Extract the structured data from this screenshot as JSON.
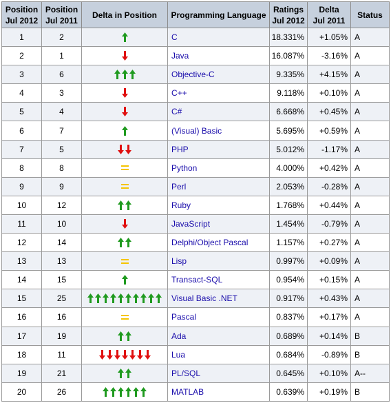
{
  "chart_data": {
    "type": "table",
    "columns": [
      {
        "line1": "Position",
        "line2": "Jul 2012"
      },
      {
        "line1": "Position",
        "line2": "Jul 2011"
      },
      {
        "line1": "Delta in Position",
        "line2": ""
      },
      {
        "line1": "Programming Language",
        "line2": ""
      },
      {
        "line1": "Ratings",
        "line2": "Jul 2012"
      },
      {
        "line1": "Delta",
        "line2": "Jul 2011"
      },
      {
        "line1": "Status",
        "line2": ""
      }
    ],
    "rows": [
      {
        "pos2012": "1",
        "pos2011": "2",
        "delta_dir": "up",
        "delta_count": 1,
        "language": "C",
        "rating": "18.331%",
        "delta": "+1.05%",
        "status": "A"
      },
      {
        "pos2012": "2",
        "pos2011": "1",
        "delta_dir": "down",
        "delta_count": 1,
        "language": "Java",
        "rating": "16.087%",
        "delta": "-3.16%",
        "status": "A"
      },
      {
        "pos2012": "3",
        "pos2011": "6",
        "delta_dir": "up",
        "delta_count": 3,
        "language": "Objective-C",
        "rating": "9.335%",
        "delta": "+4.15%",
        "status": "A"
      },
      {
        "pos2012": "4",
        "pos2011": "3",
        "delta_dir": "down",
        "delta_count": 1,
        "language": "C++",
        "rating": "9.118%",
        "delta": "+0.10%",
        "status": "A"
      },
      {
        "pos2012": "5",
        "pos2011": "4",
        "delta_dir": "down",
        "delta_count": 1,
        "language": "C#",
        "rating": "6.668%",
        "delta": "+0.45%",
        "status": "A"
      },
      {
        "pos2012": "6",
        "pos2011": "7",
        "delta_dir": "up",
        "delta_count": 1,
        "language": "(Visual) Basic",
        "rating": "5.695%",
        "delta": "+0.59%",
        "status": "A"
      },
      {
        "pos2012": "7",
        "pos2011": "5",
        "delta_dir": "down",
        "delta_count": 2,
        "language": "PHP",
        "rating": "5.012%",
        "delta": "-1.17%",
        "status": "A"
      },
      {
        "pos2012": "8",
        "pos2011": "8",
        "delta_dir": "same",
        "delta_count": 0,
        "language": "Python",
        "rating": "4.000%",
        "delta": "+0.42%",
        "status": "A"
      },
      {
        "pos2012": "9",
        "pos2011": "9",
        "delta_dir": "same",
        "delta_count": 0,
        "language": "Perl",
        "rating": "2.053%",
        "delta": "-0.28%",
        "status": "A"
      },
      {
        "pos2012": "10",
        "pos2011": "12",
        "delta_dir": "up",
        "delta_count": 2,
        "language": "Ruby",
        "rating": "1.768%",
        "delta": "+0.44%",
        "status": "A"
      },
      {
        "pos2012": "11",
        "pos2011": "10",
        "delta_dir": "down",
        "delta_count": 1,
        "language": "JavaScript",
        "rating": "1.454%",
        "delta": "-0.79%",
        "status": "A"
      },
      {
        "pos2012": "12",
        "pos2011": "14",
        "delta_dir": "up",
        "delta_count": 2,
        "language": "Delphi/Object Pascal",
        "rating": "1.157%",
        "delta": "+0.27%",
        "status": "A"
      },
      {
        "pos2012": "13",
        "pos2011": "13",
        "delta_dir": "same",
        "delta_count": 0,
        "language": "Lisp",
        "rating": "0.997%",
        "delta": "+0.09%",
        "status": "A"
      },
      {
        "pos2012": "14",
        "pos2011": "15",
        "delta_dir": "up",
        "delta_count": 1,
        "language": "Transact-SQL",
        "rating": "0.954%",
        "delta": "+0.15%",
        "status": "A"
      },
      {
        "pos2012": "15",
        "pos2011": "25",
        "delta_dir": "up",
        "delta_count": 10,
        "language": "Visual Basic .NET",
        "rating": "0.917%",
        "delta": "+0.43%",
        "status": "A"
      },
      {
        "pos2012": "16",
        "pos2011": "16",
        "delta_dir": "same",
        "delta_count": 0,
        "language": "Pascal",
        "rating": "0.837%",
        "delta": "+0.17%",
        "status": "A"
      },
      {
        "pos2012": "17",
        "pos2011": "19",
        "delta_dir": "up",
        "delta_count": 2,
        "language": "Ada",
        "rating": "0.689%",
        "delta": "+0.14%",
        "status": "B"
      },
      {
        "pos2012": "18",
        "pos2011": "11",
        "delta_dir": "down",
        "delta_count": 7,
        "language": "Lua",
        "rating": "0.684%",
        "delta": "-0.89%",
        "status": "B"
      },
      {
        "pos2012": "19",
        "pos2011": "21",
        "delta_dir": "up",
        "delta_count": 2,
        "language": "PL/SQL",
        "rating": "0.645%",
        "delta": "+0.10%",
        "status": "A--"
      },
      {
        "pos2012": "20",
        "pos2011": "26",
        "delta_dir": "up",
        "delta_count": 6,
        "language": "MATLAB",
        "rating": "0.639%",
        "delta": "+0.19%",
        "status": "B"
      }
    ]
  },
  "colors": {
    "header_bg": "#c6d0dd",
    "row_odd_bg": "#eef1f6",
    "row_even_bg": "#ffffff",
    "language_link": "#1a0dab",
    "arrow_up": "#1f9a1f",
    "arrow_down": "#e01010",
    "arrow_same": "#f5c400"
  },
  "icons": {
    "up": "arrow-up-icon",
    "down": "arrow-down-icon",
    "same": "equal-sign-icon"
  }
}
